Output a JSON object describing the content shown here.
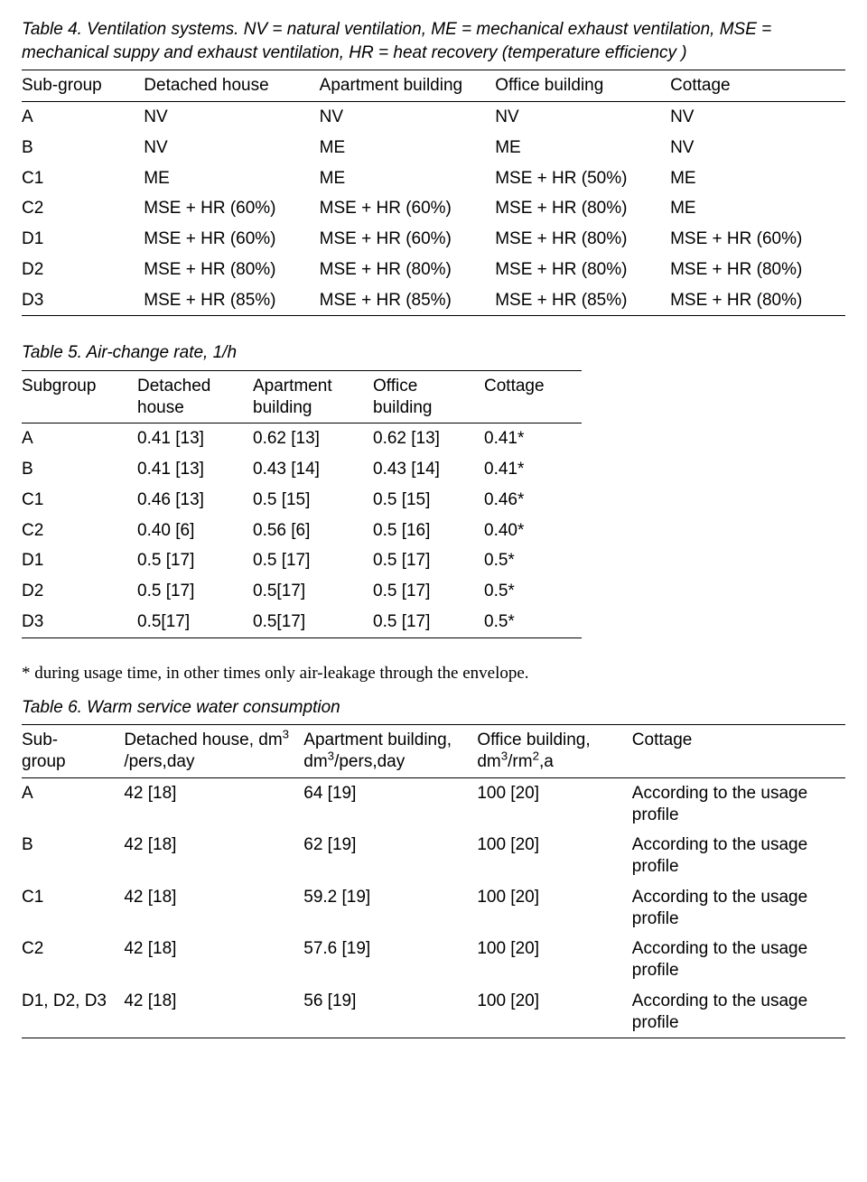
{
  "table4": {
    "caption": "Table 4. Ventilation systems. NV = natural ventilation, ME = mechanical exhaust ventilation, MSE = mechanical suppy and exhaust ventilation, HR = heat recovery (temperature efficiency )",
    "columns": [
      "Sub-group",
      "Detached house",
      "Apartment building",
      "Office building",
      "Cottage"
    ],
    "rows": [
      [
        "A",
        "NV",
        "NV",
        "NV",
        "NV"
      ],
      [
        "B",
        "NV",
        "ME",
        "ME",
        "NV"
      ],
      [
        "C1",
        "ME",
        "ME",
        "MSE + HR (50%)",
        "ME"
      ],
      [
        "C2",
        "MSE + HR (60%)",
        "MSE + HR (60%)",
        "MSE + HR (80%)",
        "ME"
      ],
      [
        "D1",
        "MSE + HR (60%)",
        "MSE + HR (60%)",
        "MSE + HR (80%)",
        "MSE + HR (60%)"
      ],
      [
        "D2",
        "MSE + HR (80%)",
        "MSE + HR (80%)",
        "MSE + HR (80%)",
        "MSE + HR (80%)"
      ],
      [
        "D3",
        "MSE + HR (85%)",
        "MSE + HR (85%)",
        "MSE + HR (85%)",
        "MSE + HR (80%)"
      ]
    ]
  },
  "table5": {
    "caption": "Table 5. Air-change rate, 1/h",
    "columns": [
      "Subgroup",
      "Detached house",
      "Apartment building",
      "Office building",
      "Cottage"
    ],
    "rows": [
      [
        "A",
        "0.41 [13]",
        "0.62 [13]",
        "0.62 [13]",
        "0.41*"
      ],
      [
        "B",
        "0.41 [13]",
        "0.43 [14]",
        "0.43 [14]",
        "0.41*"
      ],
      [
        "C1",
        "0.46 [13]",
        "0.5 [15]",
        "0.5 [15]",
        "0.46*"
      ],
      [
        "C2",
        "0.40 [6]",
        "0.56 [6]",
        "0.5 [16]",
        "0.40*"
      ],
      [
        "D1",
        "0.5 [17]",
        "0.5 [17]",
        "0.5 [17]",
        "0.5*"
      ],
      [
        "D2",
        "0.5 [17]",
        "0.5[17]",
        "0.5 [17]",
        "0.5*"
      ],
      [
        "D3",
        "0.5[17]",
        "0.5[17]",
        "0.5 [17]",
        "0.5*"
      ]
    ],
    "footnote": "* during usage time, in other times only air-leakage through the envelope."
  },
  "table6": {
    "caption": "Table 6. Warm service water consumption",
    "columns_html": [
      "Sub-<br>group",
      "Detached house, dm<span class='sup'>3</span> /pers,day",
      "Apartment building, dm<span class='sup'>3</span>/pers,day",
      "Office building, dm<span class='sup'>3</span>/rm<span class='sup'>2</span>,a",
      "Cottage"
    ],
    "rows": [
      [
        "A",
        "42 [18]",
        "64 [19]",
        "100 [20]",
        "According to the usage profile"
      ],
      [
        "B",
        "42 [18]",
        "62 [19]",
        "100 [20]",
        "According to the usage profile"
      ],
      [
        "C1",
        "42 [18]",
        "59.2 [19]",
        "100 [20]",
        "According to the usage profile"
      ],
      [
        "C2",
        "42 [18]",
        "57.6 [19]",
        "100 [20]",
        "According to the usage profile"
      ],
      [
        "D1, D2, D3",
        "42 [18]",
        "56 [19]",
        "100 [20]",
        "According to the usage profile"
      ]
    ]
  }
}
